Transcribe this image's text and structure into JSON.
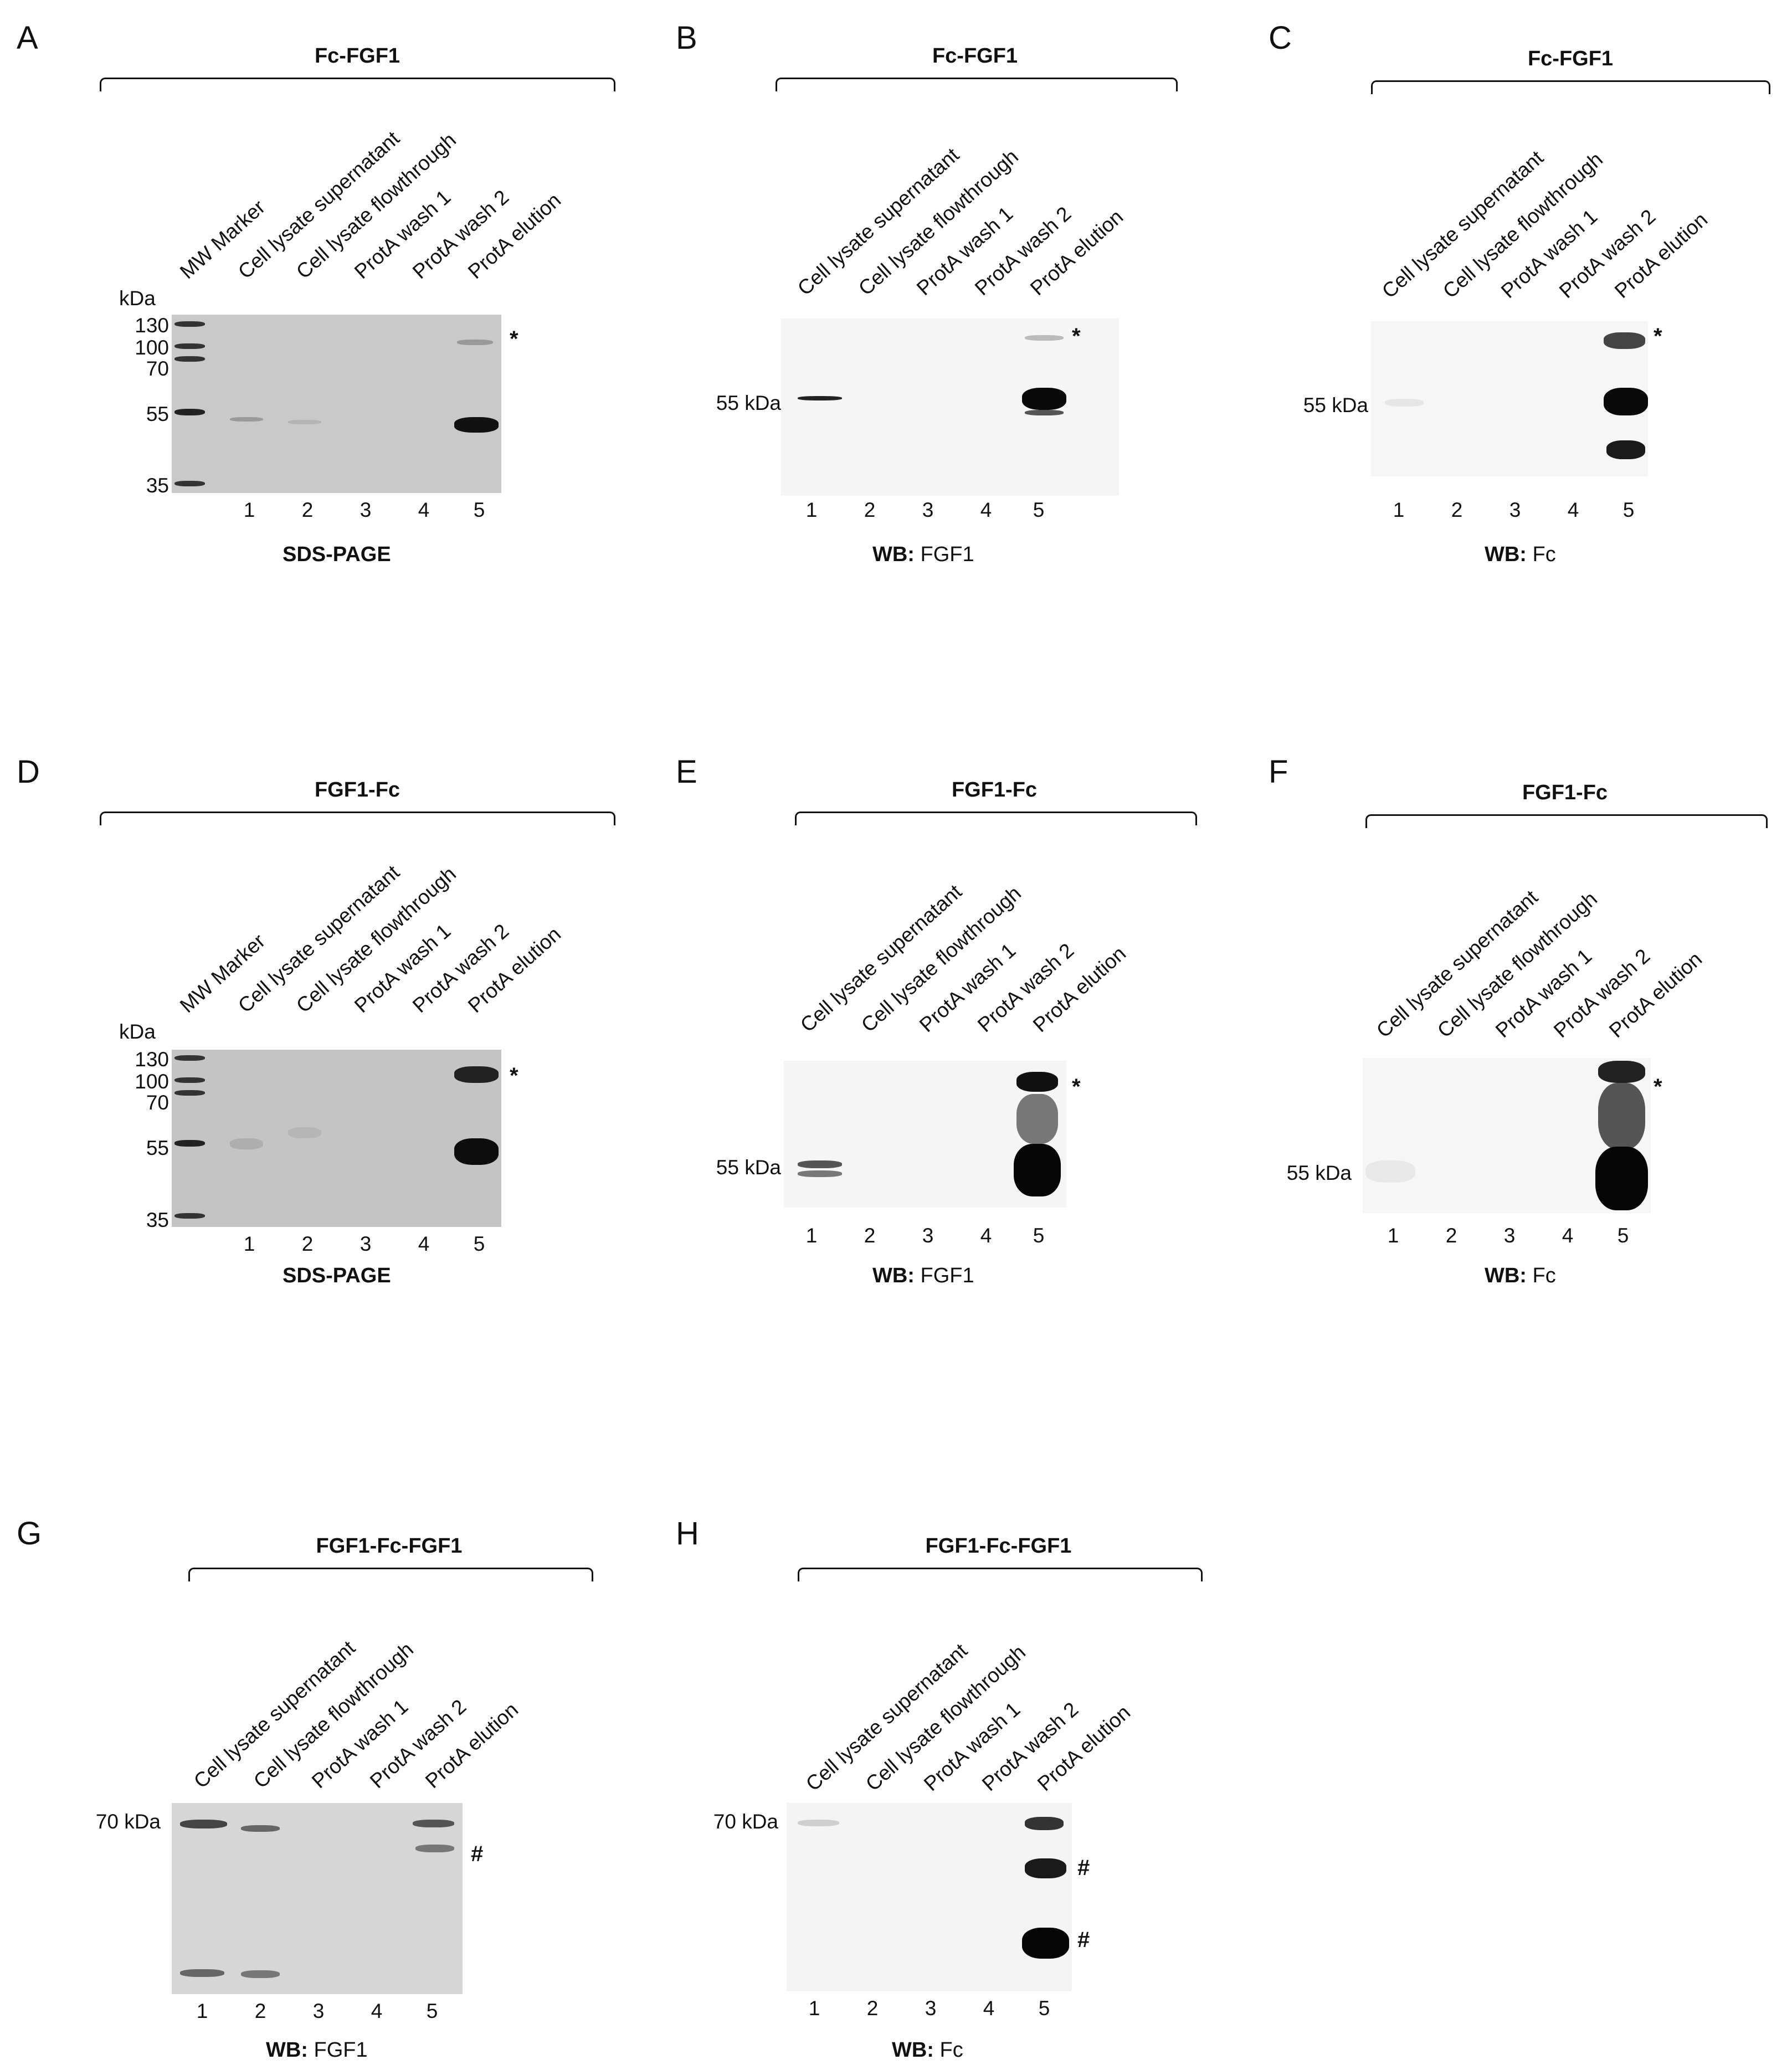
{
  "lane_labels": {
    "with_marker": [
      "MW Marker",
      "Cell lysate supernatant",
      "Cell lysate flowthrough",
      "ProtA wash 1",
      "ProtA wash 2",
      "ProtA elution"
    ],
    "no_marker": [
      "Cell lysate supernatant",
      "Cell lysate flowthrough",
      "ProtA wash 1",
      "ProtA wash 2",
      "ProtA elution"
    ]
  },
  "lane_numbers": [
    "1",
    "2",
    "3",
    "4",
    "5"
  ],
  "kda_label": "kDa",
  "mw_ladder": [
    "130",
    "100",
    "70",
    "55",
    "35"
  ],
  "star": "*",
  "hash": "#",
  "panels": {
    "A": {
      "letter": "A",
      "construct": "Fc-FGF1",
      "caption_bold": "SDS-PAGE",
      "caption_rest": ""
    },
    "B": {
      "letter": "B",
      "construct": "Fc-FGF1",
      "caption_bold": "WB:",
      "caption_rest": " FGF1",
      "size_label": "55 kDa"
    },
    "C": {
      "letter": "C",
      "construct": "Fc-FGF1",
      "caption_bold": "WB:",
      "caption_rest": " Fc",
      "size_label": "55 kDa"
    },
    "D": {
      "letter": "D",
      "construct": "FGF1-Fc",
      "caption_bold": "SDS-PAGE",
      "caption_rest": ""
    },
    "E": {
      "letter": "E",
      "construct": "FGF1-Fc",
      "caption_bold": "WB:",
      "caption_rest": " FGF1",
      "size_label": "55 kDa"
    },
    "F": {
      "letter": "F",
      "construct": "FGF1-Fc",
      "caption_bold": "WB:",
      "caption_rest": " Fc",
      "size_label": "55 kDa"
    },
    "G": {
      "letter": "G",
      "construct": "FGF1-Fc-FGF1",
      "caption_bold": "WB:",
      "caption_rest": " FGF1",
      "size_label": "70 kDa"
    },
    "H": {
      "letter": "H",
      "construct": "FGF1-Fc-FGF1",
      "caption_bold": "WB:",
      "caption_rest": " Fc",
      "size_label": "70 kDa"
    }
  }
}
